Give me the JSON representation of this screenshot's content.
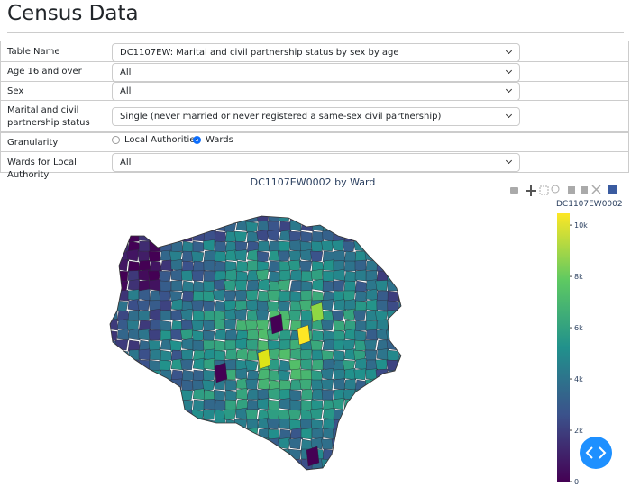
{
  "header": {
    "title": "Census Data"
  },
  "form": {
    "rows": [
      {
        "label": "Table Name",
        "value": "DC1107EW: Marital and civil partnership status by sex by age"
      },
      {
        "label": "Age 16 and over",
        "value": "All"
      },
      {
        "label": "Sex",
        "value": "All"
      },
      {
        "label": "Marital and civil partnership status",
        "value": "Single (never married or never registered a same-sex civil partnership)"
      },
      {
        "label": "Granularity",
        "options": [
          "Local Authorities",
          "Wards"
        ],
        "selected": "Wards"
      },
      {
        "label": "Wards for Local Authority",
        "value": "All"
      }
    ]
  },
  "chart_data": {
    "type": "choropleth",
    "title": "DC1107EW0002 by Ward",
    "colorbar": {
      "title": "DC1107EW0002",
      "lim": [
        0,
        10460
      ],
      "ticks": [
        0,
        {
          "value": 2000,
          "label": "2k"
        },
        {
          "value": 4000,
          "label": "4k"
        },
        {
          "value": 6000,
          "label": "6k"
        },
        {
          "value": 8000,
          "label": "8k"
        },
        {
          "value": 10000,
          "label": "10k"
        }
      ]
    }
  }
}
